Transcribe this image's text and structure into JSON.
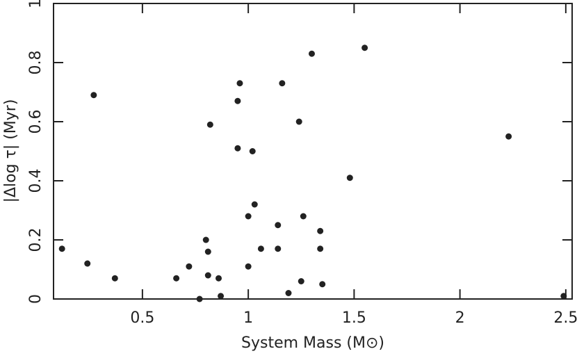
{
  "chart_data": {
    "type": "scatter",
    "xlabel": "System Mass (M⊙)",
    "ylabel": "|Δlog τ| (Myr)",
    "color": "#222222",
    "x": [
      0.12,
      0.24,
      0.27,
      0.37,
      0.66,
      0.72,
      0.77,
      0.8,
      0.81,
      0.81,
      0.82,
      0.86,
      0.87,
      0.95,
      0.96,
      0.95,
      1.0,
      1.0,
      1.02,
      1.03,
      1.06,
      1.16,
      1.14,
      1.14,
      1.19,
      1.24,
      1.25,
      1.26,
      1.3,
      1.34,
      1.34,
      1.35,
      1.48,
      1.55,
      2.23,
      2.49
    ],
    "y": [
      0.17,
      0.12,
      0.69,
      0.07,
      0.07,
      0.11,
      0.0,
      0.2,
      0.16,
      0.08,
      0.59,
      0.07,
      0.01,
      0.67,
      0.73,
      0.51,
      0.11,
      0.28,
      0.5,
      0.32,
      0.17,
      0.73,
      0.25,
      0.17,
      0.02,
      0.6,
      0.06,
      0.28,
      0.83,
      0.23,
      0.17,
      0.05,
      0.41,
      0.85,
      0.55,
      0.01
    ],
    "xlim": [
      0.08,
      2.53
    ],
    "ylim": [
      0,
      1
    ],
    "xticks": [
      0.5,
      1,
      1.5,
      2,
      2.5
    ],
    "yticks": [
      0,
      0.2,
      0.4,
      0.6,
      0.8,
      1
    ]
  }
}
